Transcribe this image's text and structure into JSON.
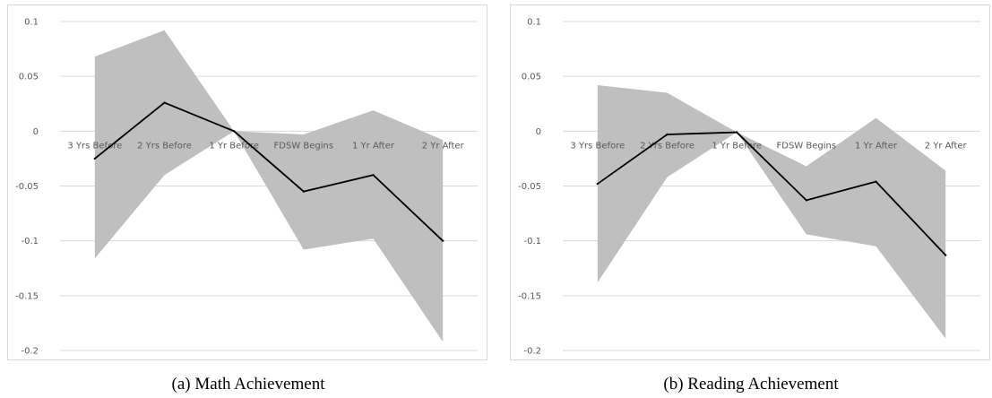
{
  "chart_data": [
    {
      "type": "line",
      "caption": "(a) Math Achievement",
      "categories": [
        "3 Yrs Before",
        "2 Yrs Before",
        "1 Yr Before",
        "FDSW Begins",
        "1 Yr After",
        "2 Yr After"
      ],
      "series": [
        {
          "values": [
            -0.025,
            0.026,
            0.0,
            -0.055,
            -0.04,
            -0.1
          ],
          "upper": [
            0.068,
            0.092,
            0.0,
            -0.003,
            0.019,
            -0.008
          ],
          "lower": [
            -0.116,
            -0.04,
            0.0,
            -0.108,
            -0.098,
            -0.192
          ]
        }
      ],
      "ylim": [
        -0.2,
        0.1
      ],
      "yticks": [
        0.1,
        0.05,
        0,
        -0.05,
        -0.1,
        -0.15,
        -0.2
      ],
      "ytick_labels": [
        "0.1",
        "0.05",
        "0",
        "-0.05",
        "-0.1",
        "-0.15",
        "-0.2"
      ],
      "grid": true,
      "line_color": "#000000",
      "band_color": "#bfbfbf"
    },
    {
      "type": "line",
      "caption": "(b) Reading Achievement",
      "categories": [
        "3 Yrs Before",
        "2 Yrs Before",
        "1 Yr Before",
        "FDSW Begins",
        "1 Yr After",
        "2 Yr After"
      ],
      "series": [
        {
          "values": [
            -0.048,
            -0.003,
            -0.001,
            -0.063,
            -0.046,
            -0.113
          ],
          "upper": [
            0.042,
            0.035,
            -0.001,
            -0.032,
            0.012,
            -0.036
          ],
          "lower": [
            -0.138,
            -0.042,
            -0.001,
            -0.094,
            -0.105,
            -0.189
          ]
        }
      ],
      "ylim": [
        -0.2,
        0.1
      ],
      "yticks": [
        0.1,
        0.05,
        0,
        -0.05,
        -0.1,
        -0.15,
        -0.2
      ],
      "ytick_labels": [
        "0.1",
        "0.05",
        "0",
        "-0.05",
        "-0.1",
        "-0.15",
        "-0.2"
      ],
      "grid": true,
      "line_color": "#000000",
      "band_color": "#bfbfbf"
    }
  ]
}
